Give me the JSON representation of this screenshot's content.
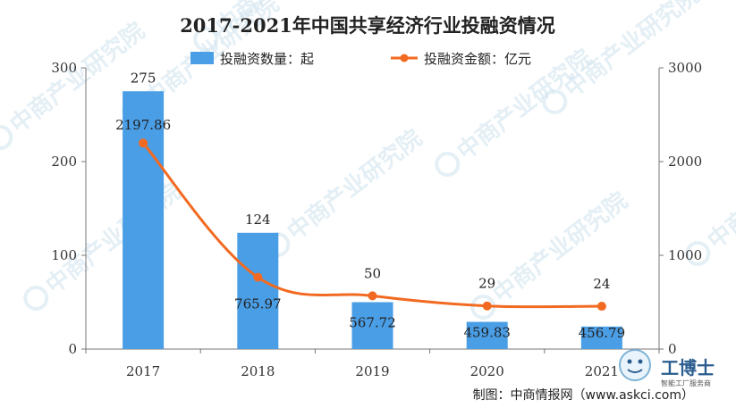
{
  "chart_data": {
    "type": "bar+line",
    "title": "2017-2021年中国共享经济行业投融资情况",
    "categories": [
      "2017",
      "2018",
      "2019",
      "2020",
      "2021"
    ],
    "series": [
      {
        "name": "投融资数量：起",
        "type": "bar",
        "axis": "left",
        "color": "#4a9ee6",
        "values": [
          275,
          124,
          50,
          29,
          24
        ]
      },
      {
        "name": "投融资金额：亿元",
        "type": "line",
        "axis": "right",
        "color": "#f26a21",
        "values": [
          2197.86,
          765.97,
          567.72,
          459.83,
          456.79
        ]
      }
    ],
    "bar_labels": [
      "275",
      "124",
      "50",
      "29",
      "24"
    ],
    "line_labels": [
      "2197.86",
      "765.97",
      "567.72",
      "459.83",
      "456.79"
    ],
    "y_left": {
      "ticks": [
        "0",
        "100",
        "200",
        "300"
      ],
      "range": [
        0,
        300
      ]
    },
    "y_right": {
      "ticks": [
        "0",
        "1000",
        "2000",
        "3000"
      ],
      "range": [
        0,
        3000
      ]
    },
    "legend_position": "top-center",
    "grid": false
  },
  "source": "制图：中商情报网（www.askci.com）",
  "watermark": "中商产业研究院",
  "logo": {
    "text": "工博士",
    "subtext": "智能工厂服务商"
  }
}
